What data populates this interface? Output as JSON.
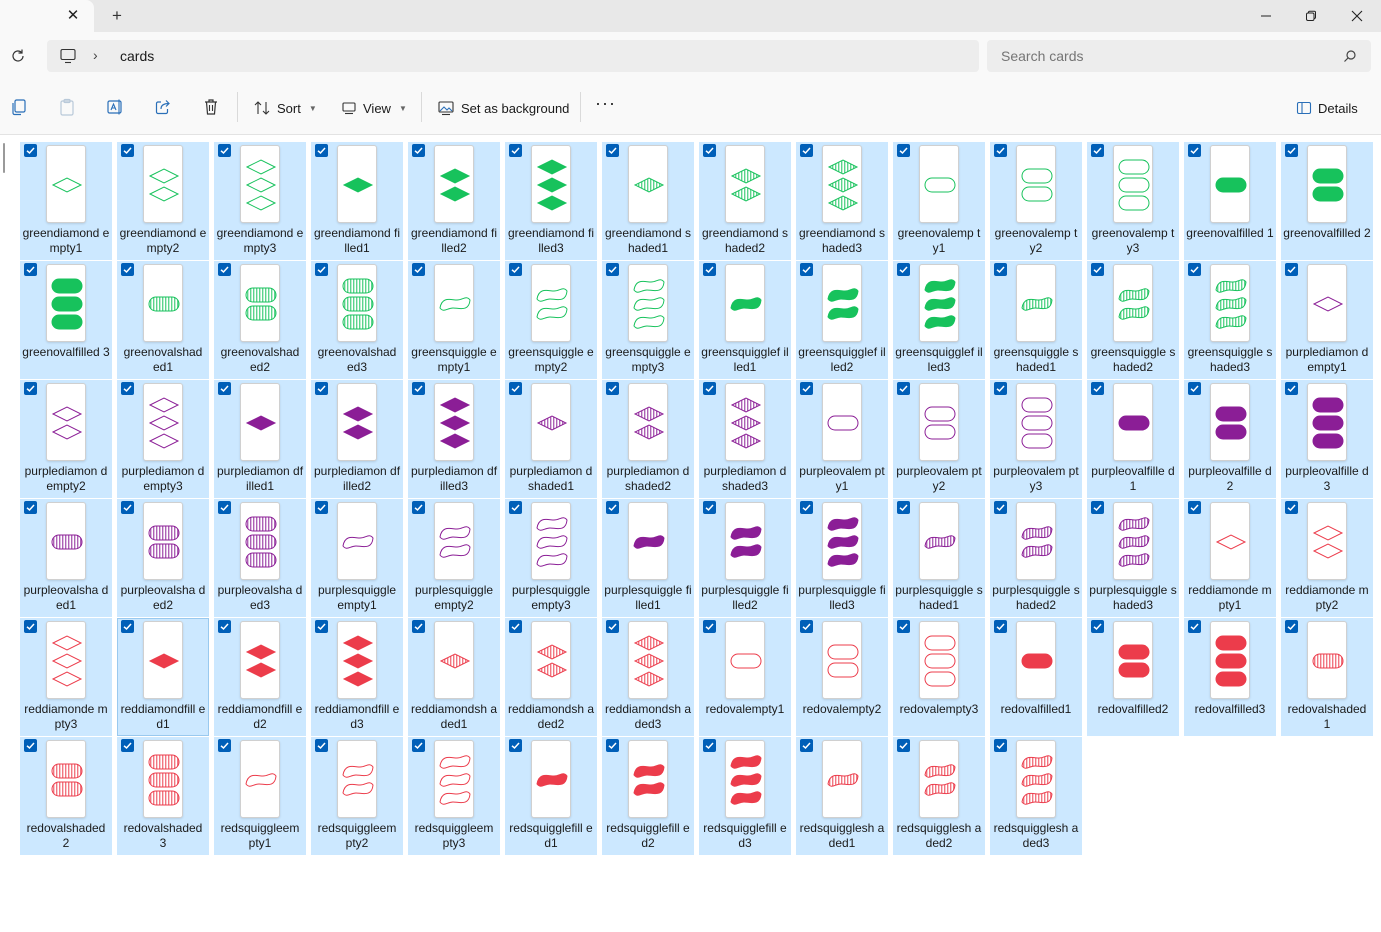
{
  "window": {
    "tab_close_glyph": "✕",
    "new_tab_glyph": "+",
    "minimize_icon": "minimize-icon",
    "maximize_icon": "restore-icon",
    "close_icon": "close-icon"
  },
  "address": {
    "breadcrumb_separator": "›",
    "breadcrumb": [
      "cards"
    ],
    "search_placeholder": "Search cards"
  },
  "toolbar": {
    "sort_label": "Sort",
    "view_label": "View",
    "set_background_label": "Set as background",
    "more_glyph": "···",
    "details_label": "Details"
  },
  "colors": {
    "selection": "#cce8ff",
    "checkbox": "#005fb8",
    "green": "#17c25c",
    "purple": "#8b1e96",
    "red": "#ec3c4b"
  },
  "files": [
    "greendiamondempty1",
    "greendiamondempty2",
    "greendiamondempty3",
    "greendiamondfilled1",
    "greendiamondfilled2",
    "greendiamondfilled3",
    "greendiamondshaded1",
    "greendiamondshaded2",
    "greendiamondshaded3",
    "greenovalempty1",
    "greenovalempty2",
    "greenovalempty3",
    "greenovalfilled1",
    "greenovalfilled2",
    "greenovalfilled3",
    "greenovalshaded1",
    "greenovalshaded2",
    "greenovalshaded3",
    "greensquiggleempty1",
    "greensquiggleempty2",
    "greensquiggleempty3",
    "greensquigglefilled1",
    "greensquigglefilled2",
    "greensquigglefilled3",
    "greensquiggleshaded1",
    "greensquiggleshaded2",
    "greensquiggleshaded3",
    "purplediamondempty1",
    "purplediamondempty2",
    "purplediamondempty3",
    "purplediamondfilled1",
    "purplediamondfilled2",
    "purplediamondfilled3",
    "purplediamondshaded1",
    "purplediamondshaded2",
    "purplediamondshaded3",
    "purpleovalempty1",
    "purpleovalempty2",
    "purpleovalempty3",
    "purpleovalfilled1",
    "purpleovalfilled2",
    "purpleovalfilled3",
    "purpleovalshaded1",
    "purpleovalshaded2",
    "purpleovalshaded3",
    "purplesquiggleempty1",
    "purplesquiggleempty2",
    "purplesquiggleempty3",
    "purplesquigglefilled1",
    "purplesquigglefilled2",
    "purplesquigglefilled3",
    "purplesquiggleshaded1",
    "purplesquiggleshaded2",
    "purplesquiggleshaded3",
    "reddiamondempty1",
    "reddiamondempty2",
    "reddiamondempty3",
    "reddiamondfilled1",
    "reddiamondfilled2",
    "reddiamondfilled3",
    "reddiamondshaded1",
    "reddiamondshaded2",
    "reddiamondshaded3",
    "redovalempty1",
    "redovalempty2",
    "redovalempty3",
    "redovalfilled1",
    "redovalfilled2",
    "redovalfilled3",
    "redovalshaded1",
    "redovalshaded2",
    "redovalshaded3",
    "redsquiggleempty1",
    "redsquiggleempty2",
    "redsquiggleempty3",
    "redsquigglefilled1",
    "redsquigglefilled2",
    "redsquigglefilled3",
    "redsquiggleshaded1",
    "redsquiggleshaded2",
    "redsquiggleshaded3"
  ],
  "label_display": {
    "greendiamondempty1": "greendiamond empty1",
    "greendiamondempty2": "greendiamond empty2",
    "greendiamondempty3": "greendiamond empty3",
    "greendiamondfilled1": "greendiamond filled1",
    "greendiamondfilled2": "greendiamond filled2",
    "greendiamondfilled3": "greendiamond filled3",
    "greendiamondshaded1": "greendiamond shaded1",
    "greendiamondshaded2": "greendiamond shaded2",
    "greendiamondshaded3": "greendiamond shaded3",
    "greenovalempty1": "greenovalemp ty1",
    "greenovalempty2": "greenovalemp ty2",
    "greenovalempty3": "greenovalemp ty3",
    "greenovalfilled1": "greenovalfilled 1",
    "greenovalfilled2": "greenovalfilled 2",
    "greenovalfilled3": "greenovalfilled 3",
    "greenovalshaded1": "greenovalshad ed1",
    "greenovalshaded2": "greenovalshad ed2",
    "greenovalshaded3": "greenovalshad ed3",
    "greensquiggleempty1": "greensquiggle empty1",
    "greensquiggleempty2": "greensquiggle empty2",
    "greensquiggleempty3": "greensquiggle empty3",
    "greensquigglefilled1": "greensquigglef illed1",
    "greensquigglefilled2": "greensquigglef illed2",
    "greensquigglefilled3": "greensquigglef illed3",
    "greensquiggleshaded1": "greensquiggle shaded1",
    "greensquiggleshaded2": "greensquiggle shaded2",
    "greensquiggleshaded3": "greensquiggle shaded3",
    "purplediamondempty1": "purplediamon dempty1",
    "purplediamondempty2": "purplediamon dempty2",
    "purplediamondempty3": "purplediamon dempty3",
    "purplediamondfilled1": "purplediamon dfilled1",
    "purplediamondfilled2": "purplediamon dfilled2",
    "purplediamondfilled3": "purplediamon dfilled3",
    "purplediamondshaded1": "purplediamon dshaded1",
    "purplediamondshaded2": "purplediamon dshaded2",
    "purplediamondshaded3": "purplediamon dshaded3",
    "purpleovalempty1": "purpleovalem pty1",
    "purpleovalempty2": "purpleovalem pty2",
    "purpleovalempty3": "purpleovalem pty3",
    "purpleovalfilled1": "purpleovalfille d1",
    "purpleovalfilled2": "purpleovalfille d2",
    "purpleovalfilled3": "purpleovalfille d3",
    "purpleovalshaded1": "purpleovalsha ded1",
    "purpleovalshaded2": "purpleovalsha ded2",
    "purpleovalshaded3": "purpleovalsha ded3",
    "purplesquiggleempty1": "purplesquiggle empty1",
    "purplesquiggleempty2": "purplesquiggle empty2",
    "purplesquiggleempty3": "purplesquiggle empty3",
    "purplesquigglefilled1": "purplesquiggle filled1",
    "purplesquigglefilled2": "purplesquiggle filled2",
    "purplesquigglefilled3": "purplesquiggle filled3",
    "purplesquiggleshaded1": "purplesquiggle shaded1",
    "purplesquiggleshaded2": "purplesquiggle shaded2",
    "purplesquiggleshaded3": "purplesquiggle shaded3",
    "reddiamondempty1": "reddiamonde mpty1",
    "reddiamondempty2": "reddiamonde mpty2",
    "reddiamondempty3": "reddiamonde mpty3",
    "reddiamondfilled1": "reddiamondfill ed1",
    "reddiamondfilled2": "reddiamondfill ed2",
    "reddiamondfilled3": "reddiamondfill ed3",
    "reddiamondshaded1": "reddiamondsh aded1",
    "reddiamondshaded2": "reddiamondsh aded2",
    "reddiamondshaded3": "reddiamondsh aded3",
    "redovalempty1": "redovalempty1",
    "redovalempty2": "redovalempty2",
    "redovalempty3": "redovalempty3",
    "redovalfilled1": "redovalfilled1",
    "redovalfilled2": "redovalfilled2",
    "redovalfilled3": "redovalfilled3",
    "redovalshaded1": "redovalshaded 1",
    "redovalshaded2": "redovalshaded 2",
    "redovalshaded3": "redovalshaded 3",
    "redsquiggleempty1": "redsquiggleem pty1",
    "redsquiggleempty2": "redsquiggleem pty2",
    "redsquiggleempty3": "redsquiggleem pty3",
    "redsquigglefilled1": "redsquigglefill ed1",
    "redsquigglefilled2": "redsquigglefill ed2",
    "redsquigglefilled3": "redsquigglefill ed3",
    "redsquiggleshaded1": "redsquigglesh aded1",
    "redsquiggleshaded2": "redsquigglesh aded2",
    "redsquiggleshaded3": "redsquigglesh aded3"
  },
  "focused_file": "reddiamondfilled1"
}
